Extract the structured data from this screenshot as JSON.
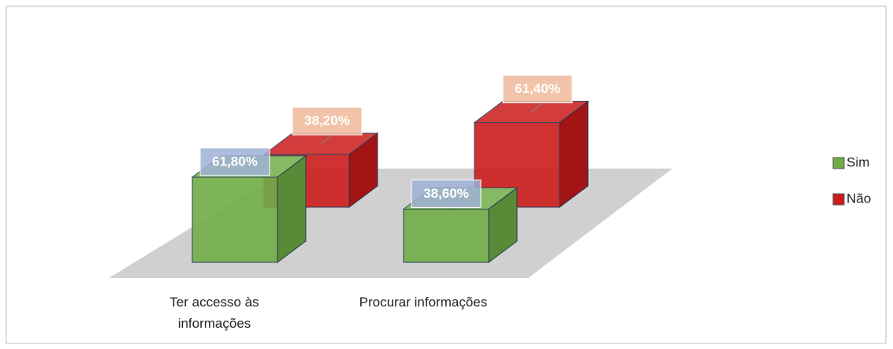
{
  "chart_data": {
    "type": "bar3d",
    "categories": [
      "Ter accesso às informações",
      "Procurar informações"
    ],
    "series": [
      {
        "name": "Sim",
        "color": "#70ad47",
        "values": [
          61.8,
          38.6
        ],
        "value_labels": [
          "61,80%",
          "38,60%"
        ]
      },
      {
        "name": "Não",
        "color": "#cc1b1b",
        "values": [
          38.2,
          61.4
        ],
        "value_labels": [
          "38,20%",
          "61,40%"
        ]
      }
    ],
    "legend": "right"
  }
}
